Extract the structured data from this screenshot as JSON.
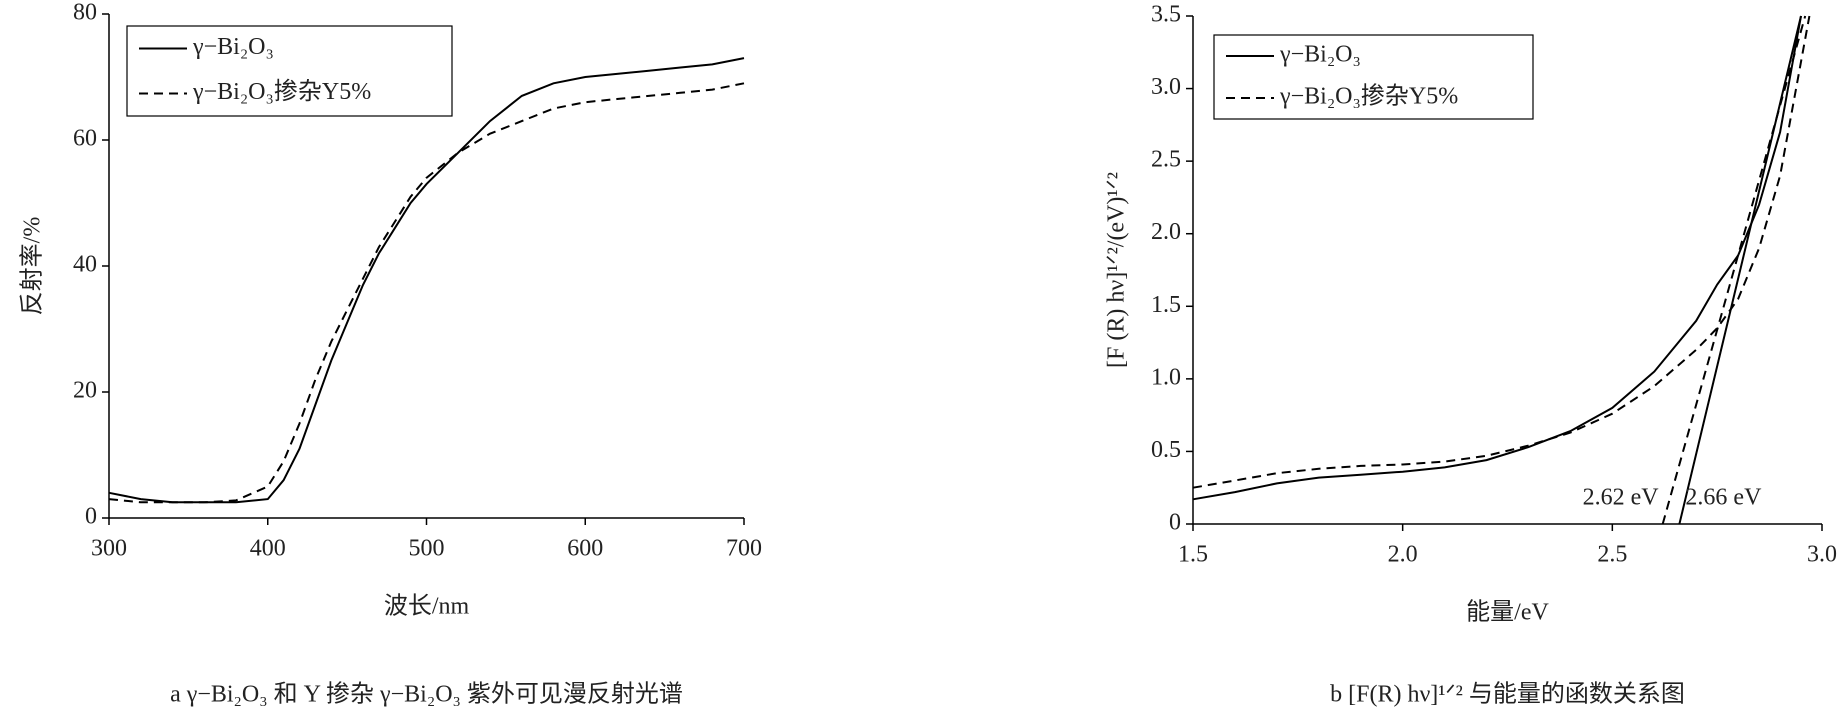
{
  "chart_data": [
    {
      "type": "line",
      "xlabel": "波长/nm",
      "ylabel": "反射率/%",
      "caption": "a γ−Bi₂O₃ 和 Y 掺杂 γ−Bi₂O₃ 紫外可见漫反射光谱",
      "xlim": [
        300,
        700
      ],
      "ylim": [
        0,
        80
      ],
      "xticks": [
        300,
        400,
        500,
        600,
        700
      ],
      "yticks": [
        0,
        20,
        40,
        60,
        80
      ],
      "legend": "upper left",
      "series": [
        {
          "name": "γ−Bi₂O₃",
          "color": "#000000",
          "linestyle": "solid",
          "x": [
            300,
            320,
            340,
            360,
            380,
            400,
            410,
            420,
            430,
            440,
            450,
            460,
            470,
            480,
            490,
            500,
            520,
            540,
            560,
            580,
            600,
            620,
            640,
            660,
            680,
            700
          ],
          "values": [
            4,
            3,
            2.5,
            2.5,
            2.5,
            3,
            6,
            11,
            18,
            25,
            31,
            37,
            42,
            46,
            50,
            53,
            58,
            63,
            67,
            69,
            70,
            70.5,
            71,
            71.5,
            72,
            73
          ]
        },
        {
          "name": "γ−Bi₂O₃掺杂Y5%",
          "color": "#000000",
          "linestyle": "dashed",
          "x": [
            300,
            320,
            340,
            360,
            380,
            400,
            410,
            420,
            430,
            440,
            450,
            460,
            470,
            480,
            490,
            500,
            520,
            540,
            560,
            580,
            600,
            620,
            640,
            660,
            680,
            700
          ],
          "values": [
            3,
            2.5,
            2.5,
            2.5,
            2.8,
            5,
            9,
            15,
            22,
            28,
            33,
            38,
            43,
            47,
            51,
            54,
            58,
            61,
            63,
            65,
            66,
            66.5,
            67,
            67.5,
            68,
            69
          ]
        }
      ]
    },
    {
      "type": "line",
      "xlabel": "能量/eV",
      "ylabel": "[F (R) hν]¹ᐟ²/(eV)¹ᐟ²",
      "caption": "b [F(R) hν]¹ᐟ² 与能量的函数关系图",
      "xlim": [
        1.5,
        3.0
      ],
      "ylim": [
        0,
        3.5
      ],
      "xticks": [
        1.5,
        {
          "value": 2,
          "label": "2.0"
        },
        2.5,
        {
          "value": 3,
          "label": "3.0"
        }
      ],
      "yticks": [
        0,
        0.5,
        {
          "value": 1,
          "label": "1.0"
        },
        1.5,
        {
          "value": 2,
          "label": "2.0"
        },
        2.5,
        {
          "value": 3,
          "label": "3.0"
        },
        3.5
      ],
      "legend": "upper left",
      "series": [
        {
          "name": "γ−Bi₂O₃",
          "color": "#000000",
          "linestyle": "solid",
          "x": [
            1.5,
            1.6,
            1.7,
            1.8,
            1.9,
            2.0,
            2.1,
            2.2,
            2.3,
            2.4,
            2.5,
            2.6,
            2.7,
            2.75,
            2.8,
            2.85,
            2.9,
            2.95
          ],
          "values": [
            0.17,
            0.22,
            0.28,
            0.32,
            0.34,
            0.36,
            0.39,
            0.44,
            0.53,
            0.64,
            0.8,
            1.05,
            1.4,
            1.65,
            1.85,
            2.2,
            2.7,
            3.5
          ]
        },
        {
          "name": "γ−Bi₂O₃掺杂Y5%",
          "color": "#000000",
          "linestyle": "dashed",
          "x": [
            1.5,
            1.6,
            1.7,
            1.8,
            1.9,
            2.0,
            2.1,
            2.2,
            2.3,
            2.4,
            2.5,
            2.6,
            2.7,
            2.75,
            2.8,
            2.85,
            2.9,
            2.97
          ],
          "values": [
            0.25,
            0.3,
            0.35,
            0.38,
            0.4,
            0.41,
            0.43,
            0.47,
            0.54,
            0.63,
            0.76,
            0.95,
            1.2,
            1.35,
            1.55,
            1.9,
            2.4,
            3.5
          ]
        }
      ],
      "tangents": [
        {
          "color": "#000000",
          "linestyle": "dashed",
          "x": [
            2.62,
            2.96
          ],
          "values": [
            0,
            3.5
          ]
        },
        {
          "color": "#000000",
          "linestyle": "solid",
          "x": [
            2.66,
            2.95
          ],
          "values": [
            0,
            3.5
          ]
        }
      ],
      "annotations": [
        {
          "text": "2.62 eV",
          "x": 2.62
        },
        {
          "text": "2.66 eV",
          "x": 2.66
        }
      ]
    }
  ]
}
